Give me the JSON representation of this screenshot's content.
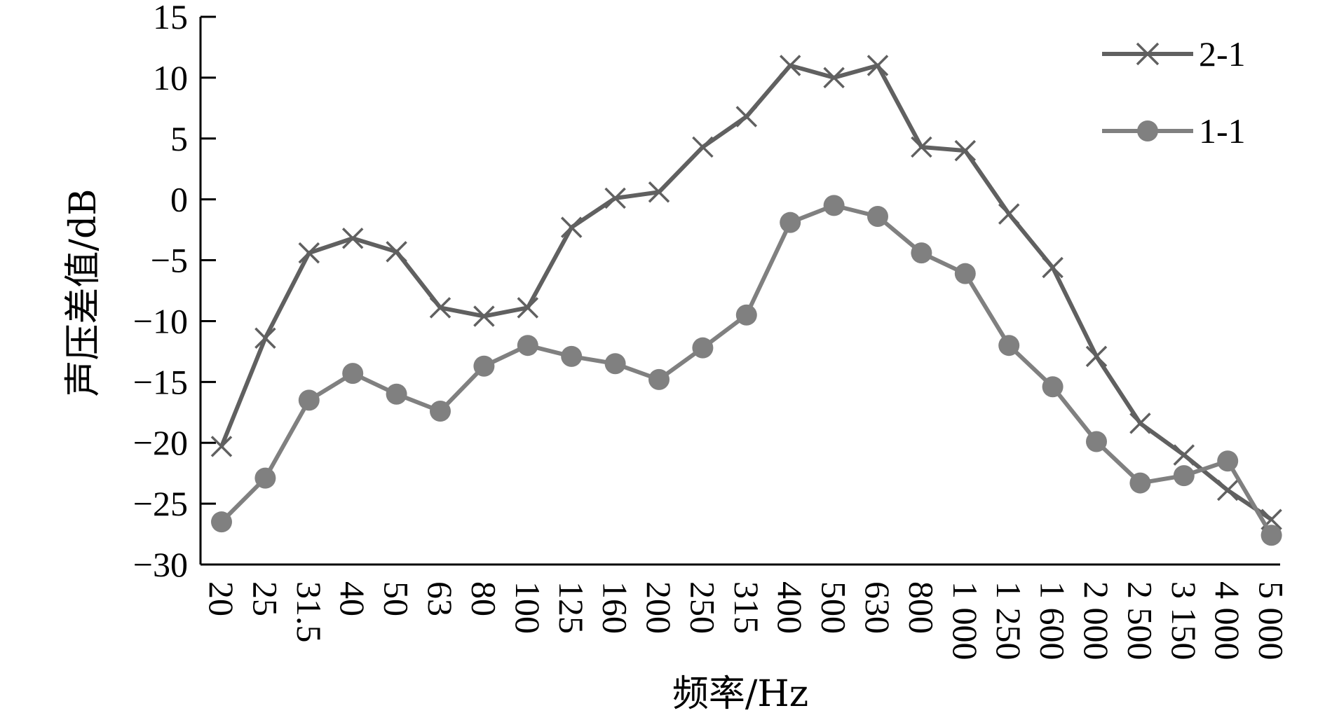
{
  "chart_data": {
    "type": "line",
    "title": "",
    "xlabel": "频率/Hz",
    "ylabel": "声压差值/dB",
    "ylim": [
      -30,
      15
    ],
    "yticks": [
      15,
      10,
      5,
      0,
      -5,
      -10,
      -15,
      -20,
      -25,
      -30
    ],
    "ytick_labels": [
      "15",
      "10",
      "5",
      "0",
      "−5",
      "−10",
      "−15",
      "−20",
      "−25",
      "−30"
    ],
    "categories": [
      "20",
      "25",
      "31.5",
      "40",
      "50",
      "63",
      "80",
      "100",
      "125",
      "160",
      "200",
      "250",
      "315",
      "400",
      "500",
      "630",
      "800",
      "1 000",
      "1 250",
      "1 600",
      "2 000",
      "2 500",
      "3 150",
      "4 000",
      "5 000"
    ],
    "grid": false,
    "legend_position": "top-right",
    "series": [
      {
        "name": "2-1",
        "marker": "x",
        "color": "#606060",
        "values": [
          -20.3,
          -11.4,
          -4.4,
          -3.2,
          -4.3,
          -8.9,
          -9.6,
          -8.9,
          -2.3,
          0.1,
          0.6,
          4.3,
          6.8,
          11.0,
          10.0,
          11.0,
          4.3,
          4.0,
          -1.2,
          -5.6,
          -12.9,
          -18.4,
          -21.0,
          -23.9,
          -26.3
        ]
      },
      {
        "name": "1-1",
        "marker": "circle",
        "color": "#808080",
        "values": [
          -26.5,
          -22.9,
          -16.5,
          -14.3,
          -16.0,
          -17.4,
          -13.7,
          -12.0,
          -12.9,
          -13.5,
          -14.8,
          -12.2,
          -9.5,
          -1.9,
          -0.5,
          -1.4,
          -4.4,
          -6.1,
          -12.0,
          -15.4,
          -19.9,
          -23.3,
          -22.7,
          -21.5,
          -27.6
        ]
      }
    ]
  }
}
